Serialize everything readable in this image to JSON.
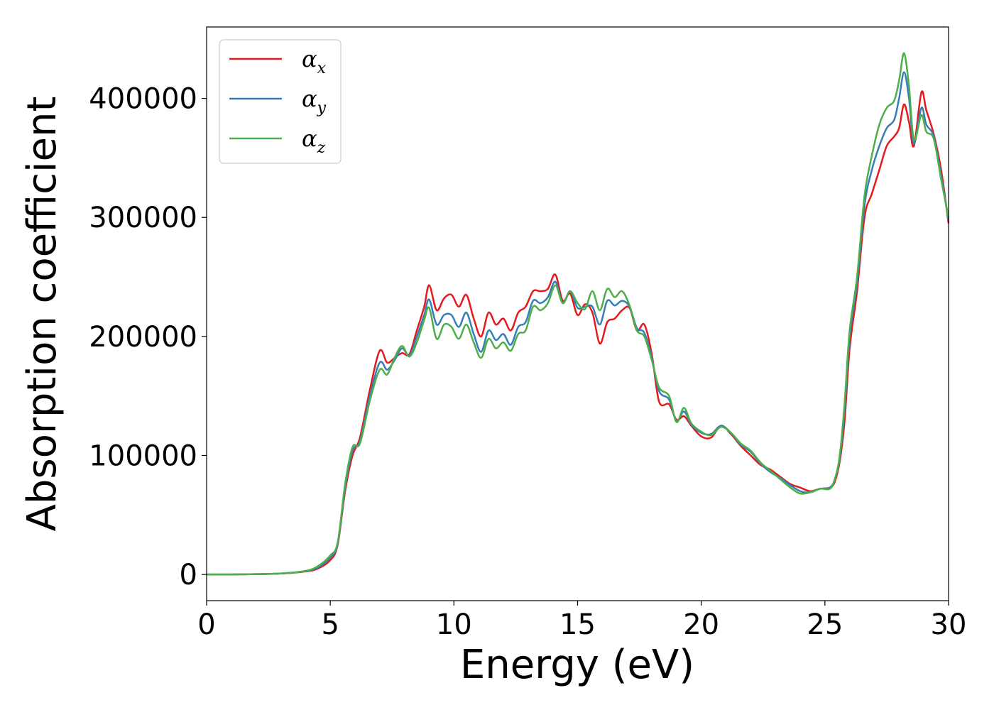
{
  "chart_data": {
    "type": "line",
    "xlabel": "Energy (eV)",
    "ylabel": "Absorption coefficient",
    "xlim": [
      0,
      30
    ],
    "ylim": [
      -22000,
      460000
    ],
    "xticks": [
      0,
      5,
      10,
      15,
      20,
      25,
      30
    ],
    "yticks": [
      0,
      100000,
      200000,
      300000,
      400000
    ],
    "grid": false,
    "legend_position": "top-left",
    "x": [
      0,
      1,
      2,
      3,
      4,
      4.5,
      5,
      5.3,
      5.6,
      5.9,
      6.2,
      6.6,
      7.0,
      7.3,
      7.6,
      7.9,
      8.2,
      8.5,
      8.8,
      9.0,
      9.3,
      9.6,
      9.9,
      10.2,
      10.5,
      10.8,
      11.1,
      11.4,
      11.7,
      12.0,
      12.3,
      12.6,
      12.9,
      13.2,
      13.5,
      13.8,
      14.1,
      14.4,
      14.7,
      15.0,
      15.3,
      15.6,
      15.9,
      16.2,
      16.5,
      16.8,
      17.1,
      17.4,
      17.7,
      18.0,
      18.3,
      18.7,
      19.0,
      19.3,
      19.6,
      20.0,
      20.4,
      20.8,
      21.2,
      21.6,
      22.0,
      22.4,
      22.8,
      23.2,
      23.6,
      24.0,
      24.4,
      24.8,
      25.2,
      25.4,
      25.6,
      25.8,
      26.0,
      26.3,
      26.6,
      26.9,
      27.2,
      27.5,
      27.8,
      28.0,
      28.2,
      28.4,
      28.6,
      28.9,
      29.1,
      29.4,
      29.7,
      30.0
    ],
    "series": [
      {
        "name": "α",
        "subscript": "x",
        "color": "#e41a1c",
        "values": [
          0,
          0,
          300,
          800,
          2500,
          5000,
          12000,
          25000,
          70000,
          100000,
          115000,
          155000,
          188000,
          178000,
          182000,
          186000,
          185000,
          205000,
          225000,
          243000,
          222000,
          232000,
          235000,
          225000,
          235000,
          215000,
          200000,
          220000,
          210000,
          215000,
          205000,
          220000,
          225000,
          238000,
          238000,
          240000,
          252000,
          230000,
          236000,
          218000,
          227000,
          220000,
          194000,
          212000,
          215000,
          222000,
          224000,
          205000,
          210000,
          185000,
          145000,
          143000,
          130000,
          133000,
          125000,
          116000,
          115000,
          125000,
          118000,
          108000,
          100000,
          92000,
          88000,
          82000,
          76000,
          73000,
          70000,
          72000,
          73000,
          78000,
          95000,
          130000,
          190000,
          238000,
          300000,
          320000,
          340000,
          360000,
          368000,
          375000,
          395000,
          380000,
          360000,
          405000,
          390000,
          370000,
          340000,
          295000
        ]
      },
      {
        "name": "α",
        "subscript": "y",
        "color": "#377eb8",
        "values": [
          0,
          0,
          300,
          800,
          2800,
          6000,
          14000,
          26000,
          73000,
          104000,
          112000,
          150000,
          178000,
          172000,
          180000,
          190000,
          184000,
          200000,
          218000,
          231000,
          210000,
          218000,
          218000,
          208000,
          220000,
          202000,
          187000,
          205000,
          197000,
          202000,
          193000,
          208000,
          212000,
          230000,
          228000,
          233000,
          246000,
          228000,
          238000,
          224000,
          225000,
          225000,
          210000,
          230000,
          226000,
          230000,
          225000,
          207000,
          203000,
          182000,
          154000,
          147000,
          129000,
          137000,
          126000,
          119000,
          118000,
          125000,
          119000,
          109000,
          103000,
          93000,
          86000,
          81000,
          75000,
          70000,
          69000,
          72000,
          73000,
          80000,
          98000,
          140000,
          200000,
          245000,
          310000,
          340000,
          360000,
          375000,
          382000,
          400000,
          422000,
          400000,
          362000,
          392000,
          378000,
          368000,
          335000,
          298000
        ]
      },
      {
        "name": "α",
        "subscript": "z",
        "color": "#4daf4a",
        "values": [
          0,
          0,
          300,
          800,
          3000,
          7000,
          16000,
          27000,
          76000,
          107000,
          110000,
          146000,
          172000,
          168000,
          182000,
          192000,
          183000,
          195000,
          214000,
          224000,
          198000,
          210000,
          208000,
          198000,
          210000,
          195000,
          182000,
          198000,
          190000,
          195000,
          188000,
          202000,
          205000,
          225000,
          222000,
          228000,
          243000,
          228000,
          238000,
          228000,
          223000,
          238000,
          222000,
          240000,
          233000,
          238000,
          226000,
          205000,
          200000,
          180000,
          157000,
          150000,
          128000,
          140000,
          127000,
          120000,
          117000,
          124000,
          119000,
          110000,
          104000,
          94000,
          87000,
          80000,
          73000,
          68000,
          69000,
          72000,
          72000,
          80000,
          100000,
          145000,
          205000,
          250000,
          318000,
          352000,
          378000,
          392000,
          398000,
          415000,
          438000,
          410000,
          365000,
          386000,
          372000,
          366000,
          332000,
          300000
        ]
      }
    ]
  }
}
